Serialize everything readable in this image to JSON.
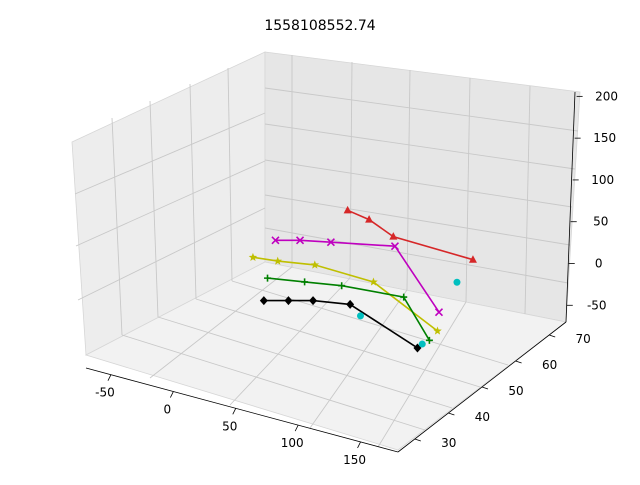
{
  "chart_data": {
    "type": "line-3d",
    "title": "1558108552.74",
    "axes": {
      "x": {
        "ticks": [
          -50,
          0,
          50,
          100,
          150
        ]
      },
      "y": {
        "ticks": [
          30,
          40,
          50,
          60,
          70
        ]
      },
      "z": {
        "ticks": [
          -50,
          0,
          50,
          100,
          150,
          200
        ]
      }
    },
    "grid": true,
    "series": [
      {
        "color": "#d62728",
        "marker": "triangle-up",
        "points": [
          [
            20,
            68,
            60
          ],
          [
            55,
            62,
            80
          ],
          [
            80,
            60,
            75
          ],
          [
            120,
            68,
            45
          ]
        ]
      },
      {
        "color": "#bf00bf",
        "marker": "x",
        "points": [
          [
            -10,
            58,
            30
          ],
          [
            10,
            58,
            40
          ],
          [
            35,
            58,
            50
          ],
          [
            75,
            62,
            55
          ],
          [
            150,
            48,
            40
          ]
        ]
      },
      {
        "color": "#bfbf00",
        "marker": "star",
        "points": [
          [
            -20,
            55,
            10
          ],
          [
            0,
            55,
            15
          ],
          [
            30,
            55,
            25
          ],
          [
            80,
            54,
            30
          ],
          [
            160,
            44,
            30
          ]
        ]
      },
      {
        "color": "#008000",
        "marker": "plus",
        "points": [
          [
            0,
            52,
            0
          ],
          [
            30,
            52,
            10
          ],
          [
            60,
            52,
            20
          ],
          [
            110,
            52,
            30
          ],
          [
            165,
            40,
            30
          ]
        ]
      },
      {
        "color": "#000000",
        "marker": "diamond",
        "points": [
          [
            20,
            44,
            0
          ],
          [
            40,
            44,
            10
          ],
          [
            60,
            44,
            20
          ],
          [
            90,
            44,
            30
          ],
          [
            155,
            40,
            15
          ]
        ]
      },
      {
        "color": "#00bfbf",
        "marker": "circle",
        "line": false,
        "points": [
          [
            95,
            45,
            15
          ],
          [
            130,
            60,
            40
          ],
          [
            165,
            38,
            30
          ]
        ]
      }
    ]
  }
}
